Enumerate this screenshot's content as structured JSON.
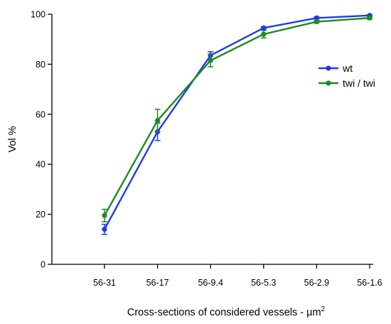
{
  "chart_data": {
    "type": "line",
    "categories": [
      "56-31",
      "56-17",
      "56-9.4",
      "56-5.3",
      "56-2.9",
      "56-1.6"
    ],
    "series": [
      {
        "name": "wt",
        "color": "#1f3be6",
        "values": [
          14.0,
          53.0,
          83.5,
          94.5,
          98.5,
          99.5
        ],
        "errors": [
          2.0,
          3.5,
          1.5,
          0.5,
          0.4,
          0.3
        ]
      },
      {
        "name": "twi / twi",
        "color": "#1e8c1e",
        "values": [
          19.5,
          57.5,
          81.5,
          92.0,
          97.0,
          98.5
        ],
        "errors": [
          2.5,
          4.5,
          2.5,
          1.5,
          0.5,
          0.5
        ]
      }
    ],
    "xlabel": "Cross-sections of considered vessels - µm",
    "xlabel_superscript": "2",
    "ylabel": "Vol %",
    "ylim": [
      0,
      100
    ],
    "yticks": [
      0,
      20,
      40,
      60,
      80,
      100
    ],
    "legend_position": "right",
    "grid": false
  }
}
